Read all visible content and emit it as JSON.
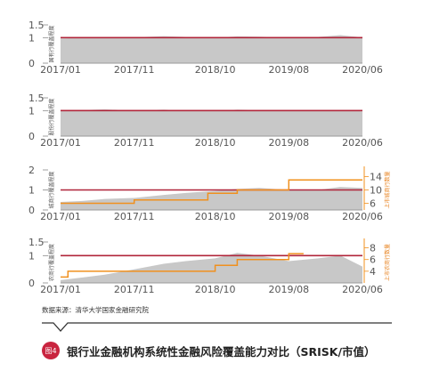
{
  "source_note": "数据来源：清华大学国家金融研究院",
  "figure_badge": "图4",
  "caption": "银行业金融机构系统性金融风险覆盖能力对比（SRISK/市值）",
  "colors": {
    "area": "#c8c8c8",
    "threshold": "#b0253a",
    "bank_count": "#f0901e"
  },
  "chart_data": [
    {
      "type": "area",
      "ylabel": "国有行覆盖程度",
      "y_ticks": [
        "0",
        "1",
        "1.5"
      ],
      "ylim": [
        0,
        1.5
      ],
      "x_ticks": [
        "2017/01",
        "2017/11",
        "2018/10",
        "2019/08",
        "2020/06"
      ],
      "threshold": 1,
      "series": [
        {
          "x": [
            "2017/01",
            "2017/04",
            "2017/07",
            "2017/11",
            "2018/03",
            "2018/06",
            "2018/10",
            "2019/01",
            "2019/04",
            "2019/08",
            "2019/12",
            "2020/03",
            "2020/06"
          ],
          "values": [
            0.97,
            0.99,
            1.03,
            1.01,
            1.06,
            1.03,
            1.0,
            1.05,
            1.04,
            1.0,
            1.03,
            1.1,
            1.01
          ]
        }
      ]
    },
    {
      "type": "area",
      "ylabel": "股份行覆盖程度",
      "y_ticks": [
        "0",
        "1",
        "1.5"
      ],
      "ylim": [
        0,
        1.5
      ],
      "x_ticks": [
        "2017/01",
        "2017/11",
        "2018/10",
        "2019/08",
        "2020/06"
      ],
      "threshold": 1,
      "series": [
        {
          "x": [
            "2017/01",
            "2017/04",
            "2017/07",
            "2017/11",
            "2018/03",
            "2018/06",
            "2018/10",
            "2019/01",
            "2019/04",
            "2019/08",
            "2019/12",
            "2020/03",
            "2020/06"
          ],
          "values": [
            1.0,
            1.02,
            1.05,
            1.0,
            1.04,
            1.0,
            0.98,
            1.04,
            1.02,
            1.0,
            1.01,
            1.03,
            0.97
          ]
        }
      ]
    },
    {
      "type": "area",
      "ylabel": "城商行覆盖程度",
      "y_ticks": [
        "0",
        "1",
        "2"
      ],
      "ylim": [
        0,
        2
      ],
      "y2label": "上市城商行数量",
      "y2_ticks": [
        "6",
        "10",
        "14"
      ],
      "y2lim": [
        4,
        16
      ],
      "x_ticks": [
        "2017/01",
        "2017/11",
        "2018/10",
        "2019/08",
        "2020/06"
      ],
      "threshold": 1,
      "series": [
        {
          "name": "覆盖程度",
          "x": [
            "2017/01",
            "2017/04",
            "2017/07",
            "2017/11",
            "2018/03",
            "2018/06",
            "2018/10",
            "2019/01",
            "2019/04",
            "2019/08",
            "2019/12",
            "2020/03",
            "2020/06"
          ],
          "values": [
            0.4,
            0.45,
            0.55,
            0.6,
            0.75,
            0.85,
            0.95,
            1.05,
            1.1,
            1.0,
            1.0,
            1.15,
            1.1
          ]
        },
        {
          "name": "上市城商行数量",
          "x": [
            "2017/01",
            "2017/11",
            "2018/09",
            "2019/01",
            "2019/08",
            "2020/06"
          ],
          "values": [
            6,
            7,
            9,
            10,
            13,
            13
          ]
        }
      ]
    },
    {
      "type": "area",
      "ylabel": "农商行覆盖程度",
      "y_ticks": [
        "0",
        "1",
        "1.5"
      ],
      "ylim": [
        0,
        1.5
      ],
      "y2label": "上市农商行数量",
      "y2_ticks": [
        "4",
        "6",
        "8"
      ],
      "y2lim": [
        2,
        9
      ],
      "x_ticks": [
        "2017/01",
        "2017/11",
        "2018/10",
        "2019/08",
        "2020/06"
      ],
      "threshold": 1,
      "series": [
        {
          "name": "覆盖程度",
          "x": [
            "2017/01",
            "2017/04",
            "2017/07",
            "2017/11",
            "2018/03",
            "2018/06",
            "2018/10",
            "2019/01",
            "2019/04",
            "2019/08",
            "2019/12",
            "2020/03",
            "2020/06"
          ],
          "values": [
            0.1,
            0.2,
            0.3,
            0.5,
            0.7,
            0.8,
            0.9,
            1.1,
            1.0,
            0.8,
            0.9,
            1.0,
            0.6
          ]
        },
        {
          "name": "上市农商行数量",
          "x": [
            "2017/01",
            "2017/02",
            "2017/11",
            "2018/10",
            "2019/01",
            "2019/05",
            "2019/08",
            "2019/10"
          ],
          "values": [
            3,
            4,
            4,
            5,
            6,
            6,
            7,
            7
          ]
        }
      ]
    }
  ]
}
